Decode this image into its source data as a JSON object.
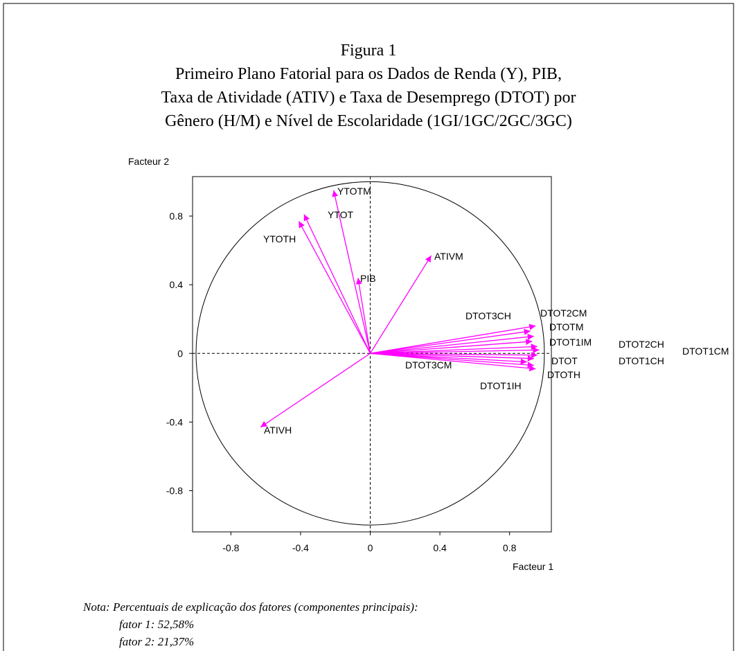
{
  "chart_data": {
    "type": "correlation-circle",
    "title": "Figura 1",
    "subtitle": [
      "Primeiro Plano Fatorial para os Dados de Renda (Y), PIB,",
      "Taxa de Atividade (ATIV) e Taxa de Desemprego (DTOT) por",
      "Gênero (H/M) e Nível de Escolaridade (1GI/1GC/2GC/3GC)"
    ],
    "xlabel": "Facteur 1",
    "ylabel": "Facteur 2",
    "xlim": [
      -1.02,
      1.04
    ],
    "ylim": [
      -1.04,
      1.03
    ],
    "xticks": [
      -0.8,
      -0.4,
      0,
      0.4,
      0.8
    ],
    "yticks": [
      -0.8,
      -0.4,
      0,
      0.4,
      0.8
    ],
    "color": "#ff00ff",
    "points": [
      {
        "label": "YTOTM",
        "x": -0.21,
        "y": 0.95
      },
      {
        "label": "YTOT",
        "x": -0.38,
        "y": 0.81
      },
      {
        "label": "YTOTH",
        "x": -0.41,
        "y": 0.77
      },
      {
        "label": "PIB",
        "x": -0.07,
        "y": 0.44
      },
      {
        "label": "ATIVM",
        "x": 0.35,
        "y": 0.57
      },
      {
        "label": "ATIVH",
        "x": -0.63,
        "y": -0.43
      },
      {
        "label": "DTOT3CH",
        "x": 0.92,
        "y": 0.13
      },
      {
        "label": "DTOT2CM",
        "x": 0.95,
        "y": 0.16
      },
      {
        "label": "DTOTM",
        "x": 0.94,
        "y": 0.1
      },
      {
        "label": "DTOT1IM",
        "x": 0.93,
        "y": 0.07
      },
      {
        "label": "DTOT2CH",
        "x": 0.96,
        "y": 0.04
      },
      {
        "label": "DTOT1CM",
        "x": 0.97,
        "y": 0.02
      },
      {
        "label": "DTOT1CH",
        "x": 0.96,
        "y": -0.01
      },
      {
        "label": "DTOT",
        "x": 0.94,
        "y": -0.03
      },
      {
        "label": "DTOTH",
        "x": 0.94,
        "y": -0.07
      },
      {
        "label": "DTOT3CM",
        "x": 0.9,
        "y": -0.05
      },
      {
        "label": "DTOT1IH",
        "x": 0.95,
        "y": -0.09
      }
    ],
    "notes": [
      "Nota: Percentuais de explicação dos fatores (componentes principais):",
      "fator 1: 52,58%",
      "fator 2: 21,37%"
    ]
  }
}
